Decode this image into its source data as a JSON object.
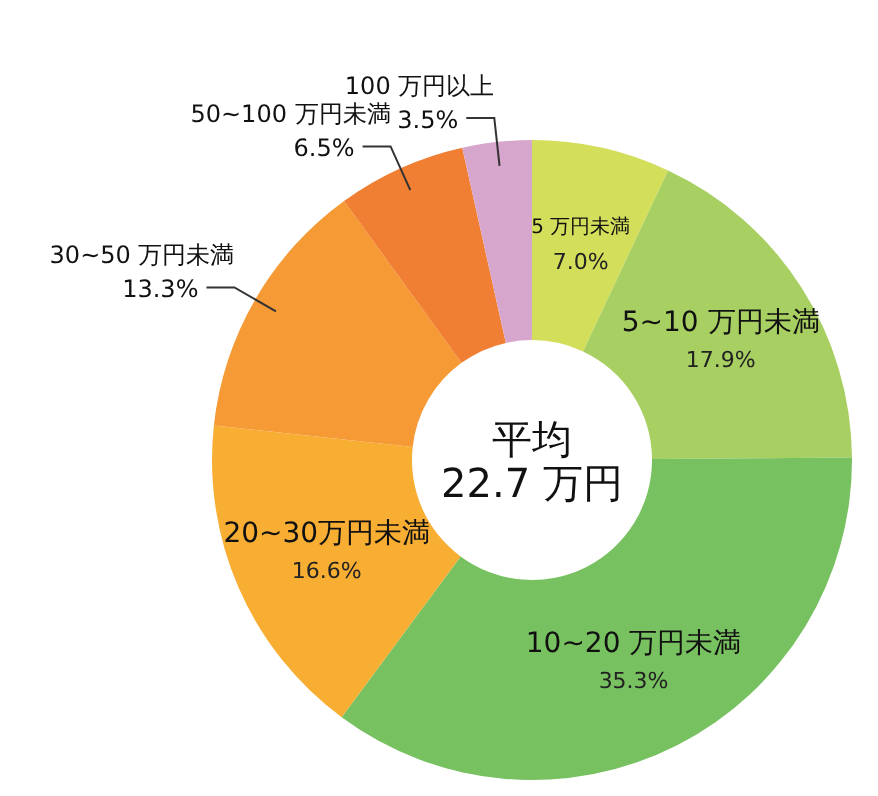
{
  "chart_data": {
    "type": "donut",
    "categories": [
      "5 万円未満",
      "5~10 万円未満",
      "10~20 万円未満",
      "20~30万円未満",
      "30~50 万円未満",
      "50~100 万円未満",
      "100 万円以上"
    ],
    "values": [
      7.0,
      17.9,
      35.3,
      16.6,
      13.3,
      6.5,
      3.5
    ],
    "value_labels": [
      "7.0%",
      "17.9%",
      "35.3%",
      "16.6%",
      "13.3%",
      "6.5%",
      "3.5%"
    ],
    "colors": [
      "#d3de5a",
      "#a8cf62",
      "#78c160",
      "#f8ae33",
      "#f59a35",
      "#f07f33",
      "#d7a6cd"
    ],
    "annotations": [
      "平均",
      "22.7 万円"
    ],
    "legend": false
  }
}
